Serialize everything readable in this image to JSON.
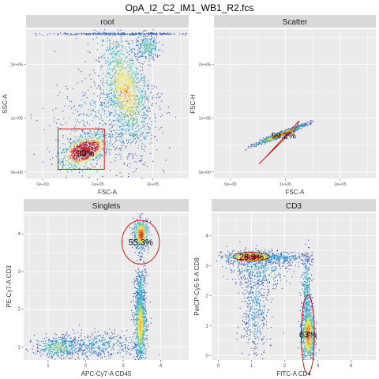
{
  "figure_title": "OpA_I2_C2_IM1_WB1_R2.fcs",
  "chart_data": [
    {
      "type": "scatter",
      "panel": "root",
      "xlabel": "FSC-A",
      "ylabel": "SSC-A",
      "xlim": [
        -30000,
        265000
      ],
      "ylim": [
        -12000,
        265000
      ],
      "x_ticks": [
        {
          "v": 0,
          "label": "0e+00"
        },
        {
          "v": 100000,
          "label": "1e+05"
        },
        {
          "v": 200000,
          "label": "2e+05"
        }
      ],
      "y_ticks": [
        {
          "v": 0,
          "label": "0e+00"
        },
        {
          "v": 100000,
          "label": "1e+05"
        },
        {
          "v": 200000,
          "label": "2e+05"
        }
      ],
      "clusters": [
        {
          "x": 75000,
          "y": 40000,
          "sx": 22000,
          "sy": 12000,
          "rot": 25,
          "n": 900,
          "w": 2.4
        },
        {
          "x": 150000,
          "y": 150000,
          "sx": 20000,
          "sy": 55000,
          "rot": 12,
          "n": 1300,
          "w": 1.0
        },
        {
          "x": 110000,
          "y": 90000,
          "sx": 45000,
          "sy": 45000,
          "rot": 40,
          "n": 550,
          "w": 0.3
        },
        {
          "x": 190000,
          "y": 232000,
          "sx": 12000,
          "sy": 12000,
          "rot": 0,
          "n": 260,
          "w": 0.6
        },
        {
          "x": 145000,
          "y": 257000,
          "sx": 65000,
          "sy": 900,
          "rot": 0,
          "n": 300,
          "w": 0.2
        }
      ],
      "gate": {
        "shape": "rectangle",
        "x": [
          28000,
          112000
        ],
        "y": [
          5000,
          80000
        ],
        "label": "33%",
        "label_at": [
          78000,
          35000
        ]
      }
    },
    {
      "type": "scatter",
      "panel": "Scatter",
      "xlabel": "FSC-A",
      "ylabel": "FSC-H",
      "xlim": [
        -30000,
        265000
      ],
      "ylim": [
        -12000,
        265000
      ],
      "x_ticks": [
        {
          "v": 0,
          "label": "0e+00"
        },
        {
          "v": 100000,
          "label": "1e+05"
        },
        {
          "v": 200000,
          "label": "2e+05"
        }
      ],
      "y_ticks": [
        {
          "v": 0,
          "label": "0e+00"
        },
        {
          "v": 100000,
          "label": "1e+05"
        },
        {
          "v": 200000,
          "label": "2e+05"
        }
      ],
      "clusters": [
        {
          "x": 90000,
          "y": 70000,
          "sx": 25000,
          "sy": 2000,
          "rot": 22,
          "n": 900,
          "w": 1.2
        }
      ],
      "gate": {
        "shape": "polygon",
        "points": [
          [
            52000,
            15000
          ],
          [
            62000,
            25000
          ],
          [
            125000,
            95000
          ],
          [
            121000,
            84000
          ]
        ],
        "label": "99.2%",
        "label_at": [
          97000,
          68000
        ]
      }
    },
    {
      "type": "scatter",
      "panel": "Singlets",
      "xlabel": "APC-Cy7-A CD45",
      "ylabel": "PE-Cy7-A CD3",
      "xlim": [
        0.35,
        4.75
      ],
      "ylim": [
        0.65,
        4.55
      ],
      "x_ticks": [
        {
          "v": 1,
          "label": "1"
        },
        {
          "v": 2,
          "label": "2"
        },
        {
          "v": 3,
          "label": "3"
        },
        {
          "v": 4,
          "label": "4"
        }
      ],
      "y_ticks": [
        {
          "v": 1,
          "label": "1"
        },
        {
          "v": 2,
          "label": "2"
        },
        {
          "v": 3,
          "label": "3"
        },
        {
          "v": 4,
          "label": "4"
        }
      ],
      "clusters": [
        {
          "x": 3.47,
          "y": 4.0,
          "sx": 0.1,
          "sy": 0.2,
          "rot": 0,
          "n": 500,
          "w": 1.3
        },
        {
          "x": 3.45,
          "y": 1.6,
          "sx": 0.08,
          "sy": 0.5,
          "rot": 0,
          "n": 900,
          "w": 1.0
        },
        {
          "x": 3.45,
          "y": 2.6,
          "sx": 0.07,
          "sy": 0.35,
          "rot": 0,
          "n": 250,
          "w": 0.5
        },
        {
          "x": 1.25,
          "y": 1.0,
          "sx": 0.3,
          "sy": 0.14,
          "rot": 0,
          "n": 400,
          "w": 0.7
        },
        {
          "x": 2.3,
          "y": 1.05,
          "sx": 0.55,
          "sy": 0.18,
          "rot": 0,
          "n": 450,
          "w": 0.3
        }
      ],
      "gate": {
        "shape": "ellipse",
        "cx": 3.47,
        "cy": 3.78,
        "rx": 0.5,
        "ry": 0.58,
        "label": "55.3%",
        "label_at": [
          3.47,
          3.78
        ]
      }
    },
    {
      "type": "scatter",
      "panel": "CD3",
      "xlabel": "FITC-A CD4",
      "ylabel": "PerCP-Cy5-5-A CD8",
      "xlim": [
        -0.2,
        4.75
      ],
      "ylim": [
        -0.15,
        4.75
      ],
      "x_ticks": [
        {
          "v": 0,
          "label": "0"
        },
        {
          "v": 1,
          "label": "1"
        },
        {
          "v": 2,
          "label": "2"
        },
        {
          "v": 3,
          "label": "3"
        },
        {
          "v": 4,
          "label": "4"
        }
      ],
      "y_ticks": [
        {
          "v": 0,
          "label": "0"
        },
        {
          "v": 1,
          "label": "1"
        },
        {
          "v": 2,
          "label": "2"
        },
        {
          "v": 3,
          "label": "3"
        },
        {
          "v": 4,
          "label": "4"
        }
      ],
      "clusters": [
        {
          "x": 1.0,
          "y": 3.3,
          "sx": 0.38,
          "sy": 0.1,
          "rot": 0,
          "n": 700,
          "w": 1.4
        },
        {
          "x": 2.7,
          "y": 0.7,
          "sx": 0.1,
          "sy": 0.5,
          "rot": 0,
          "n": 800,
          "w": 1.2
        },
        {
          "x": 2.65,
          "y": 2.2,
          "sx": 0.07,
          "sy": 0.6,
          "rot": 0,
          "n": 300,
          "w": 0.5
        },
        {
          "x": 1.1,
          "y": 1.5,
          "sx": 0.2,
          "sy": 0.8,
          "rot": 0,
          "n": 450,
          "w": 0.3
        },
        {
          "x": 1.2,
          "y": 2.9,
          "sx": 0.45,
          "sy": 0.3,
          "rot": 0,
          "n": 350,
          "w": 0.4
        },
        {
          "x": 2.0,
          "y": 3.25,
          "sx": 0.4,
          "sy": 0.1,
          "rot": 0,
          "n": 200,
          "w": 0.3
        }
      ],
      "gates": [
        {
          "shape": "ellipse",
          "cx": 1.0,
          "cy": 3.3,
          "rx": 0.55,
          "ry": 0.14,
          "label": "28.3%",
          "label_at": [
            1.0,
            3.3
          ]
        },
        {
          "shape": "ellipse",
          "cx": 2.7,
          "cy": 0.7,
          "rx": 0.2,
          "ry": 1.32,
          "label": "63%",
          "label_at": [
            2.7,
            0.7
          ]
        }
      ]
    }
  ],
  "colors": {
    "panel_background": "#ebebeb",
    "grid_major": "#ffffff",
    "strip_background": "#d9d9d9",
    "gate": "#d40000",
    "density_low": "#2d2fa6",
    "density_mid": "#26b3c9",
    "density_high": "#fde725",
    "density_peak": "#c0152b"
  }
}
